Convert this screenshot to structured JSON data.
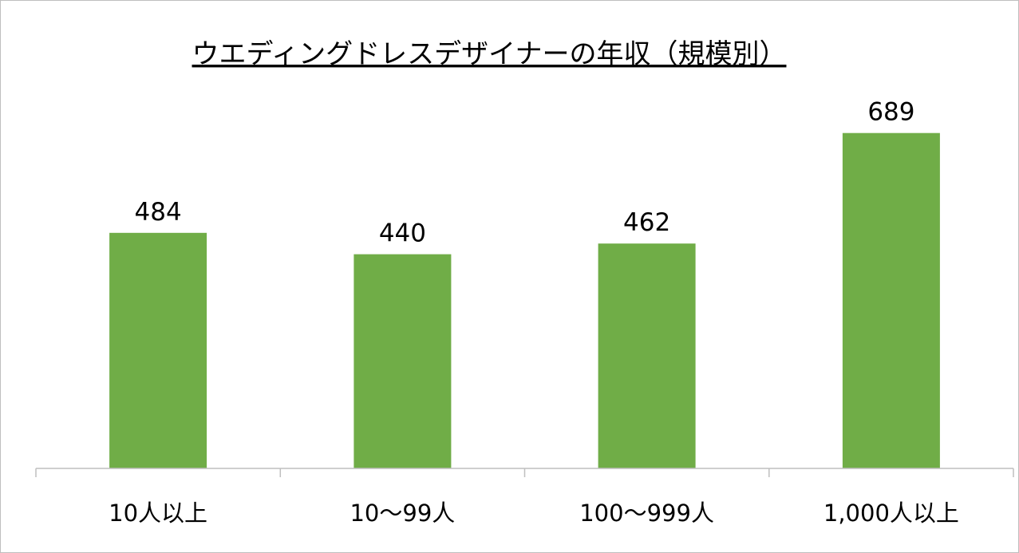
{
  "chart_data": {
    "type": "bar",
    "title": "ウエディングドレスデザイナーの年収（規模別）",
    "categories": [
      "10人以上",
      "10〜99人",
      "100〜999人",
      "1,000人以上"
    ],
    "values": [
      484,
      440,
      462,
      689
    ],
    "data_labels": [
      "484",
      "440",
      "462",
      "689"
    ],
    "xlabel": "",
    "ylabel": "",
    "ylim": [
      0,
      750
    ],
    "grid": false,
    "legend": "none",
    "bar_color": "#70AD47",
    "axis_color": "#BFBFBF"
  }
}
